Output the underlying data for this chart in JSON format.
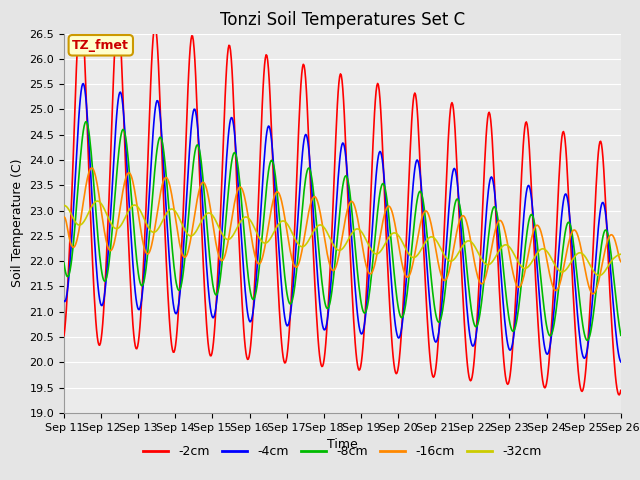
{
  "title": "Tonzi Soil Temperatures Set C",
  "xlabel": "Time",
  "ylabel": "Soil Temperature (C)",
  "ylim": [
    19.0,
    26.5
  ],
  "yticks": [
    19.0,
    19.5,
    20.0,
    20.5,
    21.0,
    21.5,
    22.0,
    22.5,
    23.0,
    23.5,
    24.0,
    24.5,
    25.0,
    25.5,
    26.0,
    26.5
  ],
  "xtick_labels": [
    "Sep 11",
    "Sep 12",
    "Sep 13",
    "Sep 14",
    "Sep 15",
    "Sep 16",
    "Sep 17",
    "Sep 18",
    "Sep 19",
    "Sep 20",
    "Sep 21",
    "Sep 22",
    "Sep 23",
    "Sep 24",
    "Sep 25",
    "Sep 26"
  ],
  "bg_color": "#e5e5e5",
  "plot_bg": "#ebebeb",
  "grid_color": "#ffffff",
  "annotation_text": "TZ_fmet",
  "annotation_bg": "#ffffcc",
  "annotation_border": "#cc9900",
  "legend_labels": [
    "-2cm",
    "-4cm",
    "-8cm",
    "-16cm",
    "-32cm"
  ],
  "line_colors": [
    "#ff0000",
    "#0000ff",
    "#00bb00",
    "#ff8800",
    "#cccc00"
  ],
  "line_width": 1.2,
  "title_fontsize": 12,
  "axis_label_fontsize": 9,
  "tick_fontsize": 8,
  "legend_fontsize": 9
}
